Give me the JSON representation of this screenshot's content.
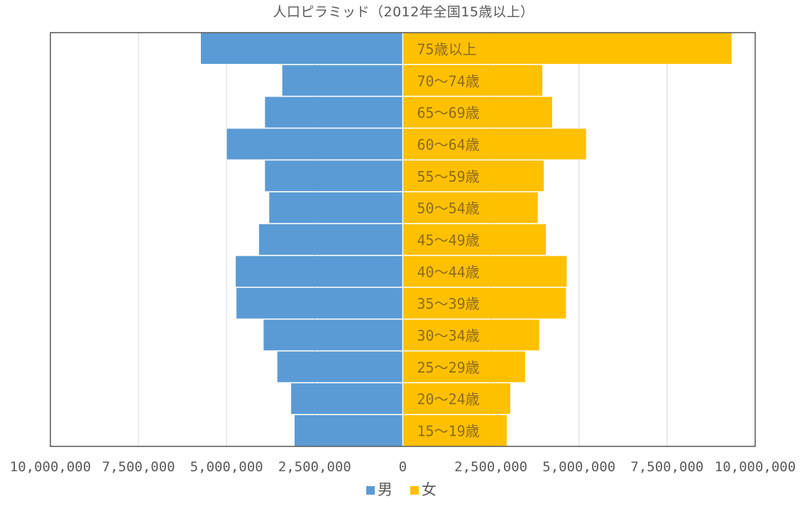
{
  "chart_data": {
    "type": "bar",
    "orientation": "horizontal",
    "layout": "population-pyramid",
    "title": "人口ピラミッド（2012年全国15歳以上）",
    "categories": [
      "15～19歳",
      "20～24歳",
      "25～29歳",
      "30～34歳",
      "35～39歳",
      "40～44歳",
      "45～49歳",
      "50～54歳",
      "55～59歳",
      "60～64歳",
      "65～69歳",
      "70～74歳",
      "75歳以上"
    ],
    "series": [
      {
        "name": "男",
        "color": "#5B9BD5",
        "side": "left",
        "values": [
          3070000,
          3170000,
          3560000,
          3950000,
          4720000,
          4740000,
          4080000,
          3790000,
          3910000,
          4990000,
          3910000,
          3420000,
          5730000
        ]
      },
      {
        "name": "女",
        "color": "#FFC000",
        "side": "right",
        "values": [
          2950000,
          3050000,
          3470000,
          3870000,
          4630000,
          4650000,
          4060000,
          3830000,
          4000000,
          5200000,
          4240000,
          3960000,
          9330000
        ]
      }
    ],
    "x_ticks": [
      "10,000,000",
      "7,500,000",
      "5,000,000",
      "2,500,000",
      "0",
      "2,500,000",
      "5,000,000",
      "7,500,000",
      "10,000,000"
    ],
    "xlim": [
      -10000000,
      10000000
    ],
    "grid": "vertical",
    "legend": "bottom",
    "category_label_color": "#8C6D1F",
    "axis_label_color": "#595959",
    "grid_color": "#D9D9D9",
    "border_color": "#000000"
  }
}
